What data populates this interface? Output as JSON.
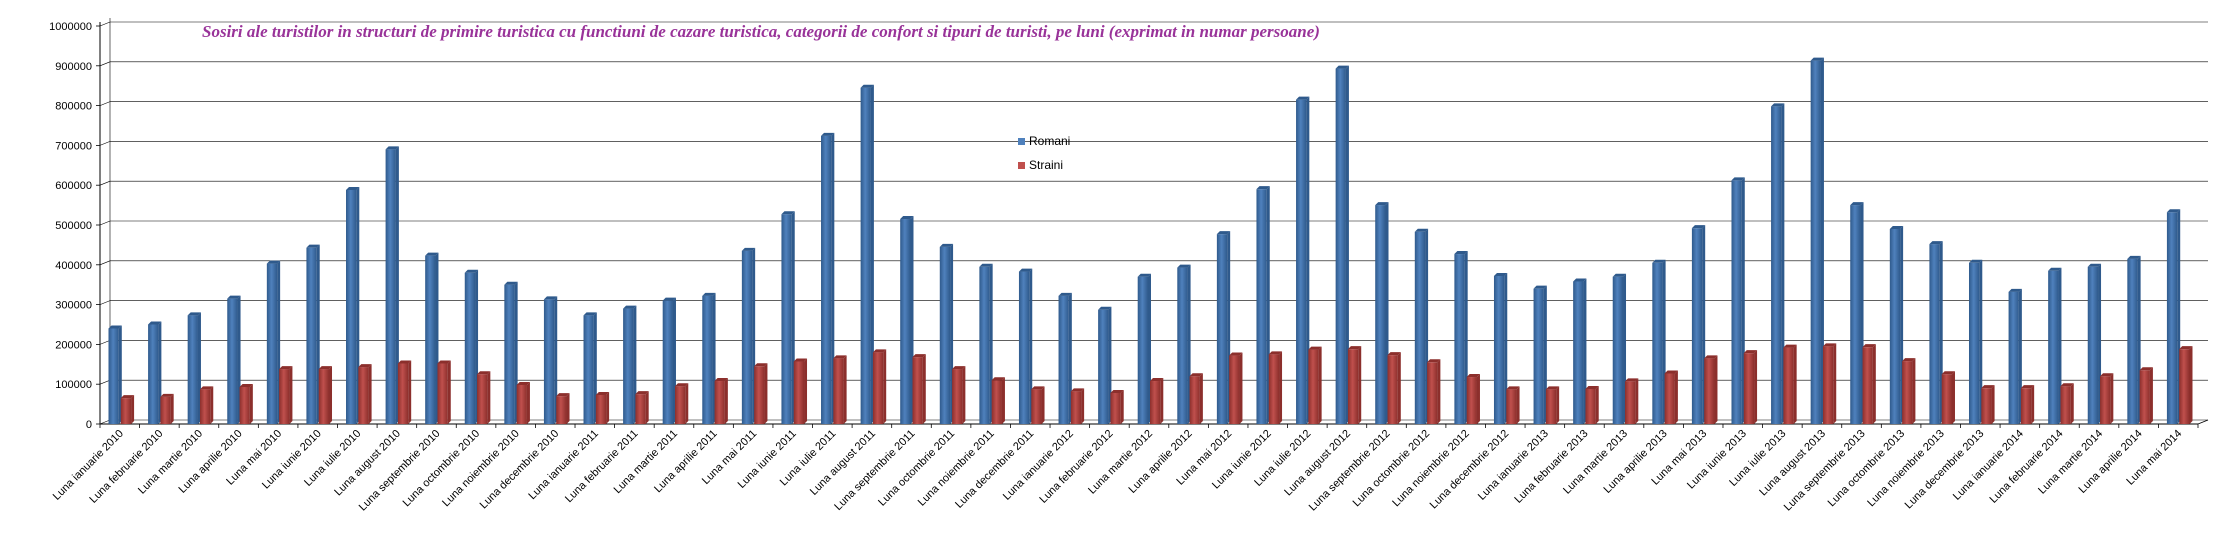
{
  "colors": {
    "romani": "#4f81bd",
    "romani_dark": "#2f5a8c",
    "straini": "#c0504d",
    "straini_dark": "#8c2f2c",
    "title": "#993399",
    "grid": "#000000"
  },
  "chart_data": {
    "type": "bar",
    "title": "Sosiri ale turistilor in structuri de primire turistica cu functiuni de cazare turistica, categorii de confort si tipuri de turisti, pe luni (exprimat in numar persoane)",
    "xlabel": "",
    "ylabel": "",
    "ylim": [
      0,
      1000000
    ],
    "yticks": [
      "0",
      "100000",
      "200000",
      "300000",
      "400000",
      "500000",
      "600000",
      "700000",
      "800000",
      "900000",
      "1000000"
    ],
    "grid": true,
    "legend_position": "center-top",
    "categories": [
      "Luna ianuarie 2010",
      "Luna februarie 2010",
      "Luna martie 2010",
      "Luna aprilie 2010",
      "Luna mai 2010",
      "Luna iunie 2010",
      "Luna iulie 2010",
      "Luna august 2010",
      "Luna septembrie 2010",
      "Luna octombrie 2010",
      "Luna noiembrie 2010",
      "Luna decembrie 2010",
      "Luna ianuarie 2011",
      "Luna februarie 2011",
      "Luna martie 2011",
      "Luna aprilie 2011",
      "Luna mai 2011",
      "Luna iunie 2011",
      "Luna iulie 2011",
      "Luna august 2011",
      "Luna septembrie 2011",
      "Luna octombrie 2011",
      "Luna noiembrie 2011",
      "Luna decembrie 2011",
      "Luna ianuarie 2012",
      "Luna februarie 2012",
      "Luna martie 2012",
      "Luna aprilie 2012",
      "Luna mai 2012",
      "Luna iunie 2012",
      "Luna iulie 2012",
      "Luna august 2012",
      "Luna septembrie 2012",
      "Luna octombrie 2012",
      "Luna noiembrie 2012",
      "Luna decembrie 2012",
      "Luna ianuarie 2013",
      "Luna februarie 2013",
      "Luna martie 2013",
      "Luna aprilie 2013",
      "Luna mai 2013",
      "Luna iunie 2013",
      "Luna iulie 2013",
      "Luna august 2013",
      "Luna septembrie 2013",
      "Luna octombrie 2013",
      "Luna noiembrie 2013",
      "Luna decembrie 2013",
      "Luna ianuarie 2014",
      "Luna februarie 2014",
      "Luna martie 2014",
      "Luna aprilie 2014",
      "Luna mai 2014"
    ],
    "series": [
      {
        "name": "Romani",
        "values": [
          240000,
          250000,
          273000,
          315000,
          403000,
          443000,
          588000,
          690000,
          423000,
          380000,
          350000,
          313000,
          273000,
          290000,
          310000,
          322000,
          435000,
          527000,
          724000,
          845000,
          515000,
          445000,
          395000,
          383000,
          322000,
          287000,
          370000,
          393000,
          477000,
          590000,
          815000,
          893000,
          550000,
          483000,
          427000,
          372000,
          340000,
          358000,
          370000,
          405000,
          492000,
          612000,
          798000,
          913000,
          550000,
          490000,
          452000,
          405000,
          332000,
          385000,
          395000,
          415000,
          532000
        ]
      },
      {
        "name": "Straini",
        "values": [
          65000,
          68000,
          87000,
          93000,
          138000,
          138000,
          143000,
          152000,
          152000,
          125000,
          98000,
          70000,
          73000,
          75000,
          95000,
          108000,
          145000,
          157000,
          165000,
          180000,
          168000,
          138000,
          110000,
          87000,
          82000,
          78000,
          108000,
          120000,
          172000,
          175000,
          187000,
          188000,
          173000,
          155000,
          118000,
          87000,
          87000,
          88000,
          107000,
          127000,
          165000,
          178000,
          192000,
          195000,
          193000,
          158000,
          125000,
          90000,
          90000,
          95000,
          120000,
          135000,
          188000
        ]
      }
    ]
  }
}
